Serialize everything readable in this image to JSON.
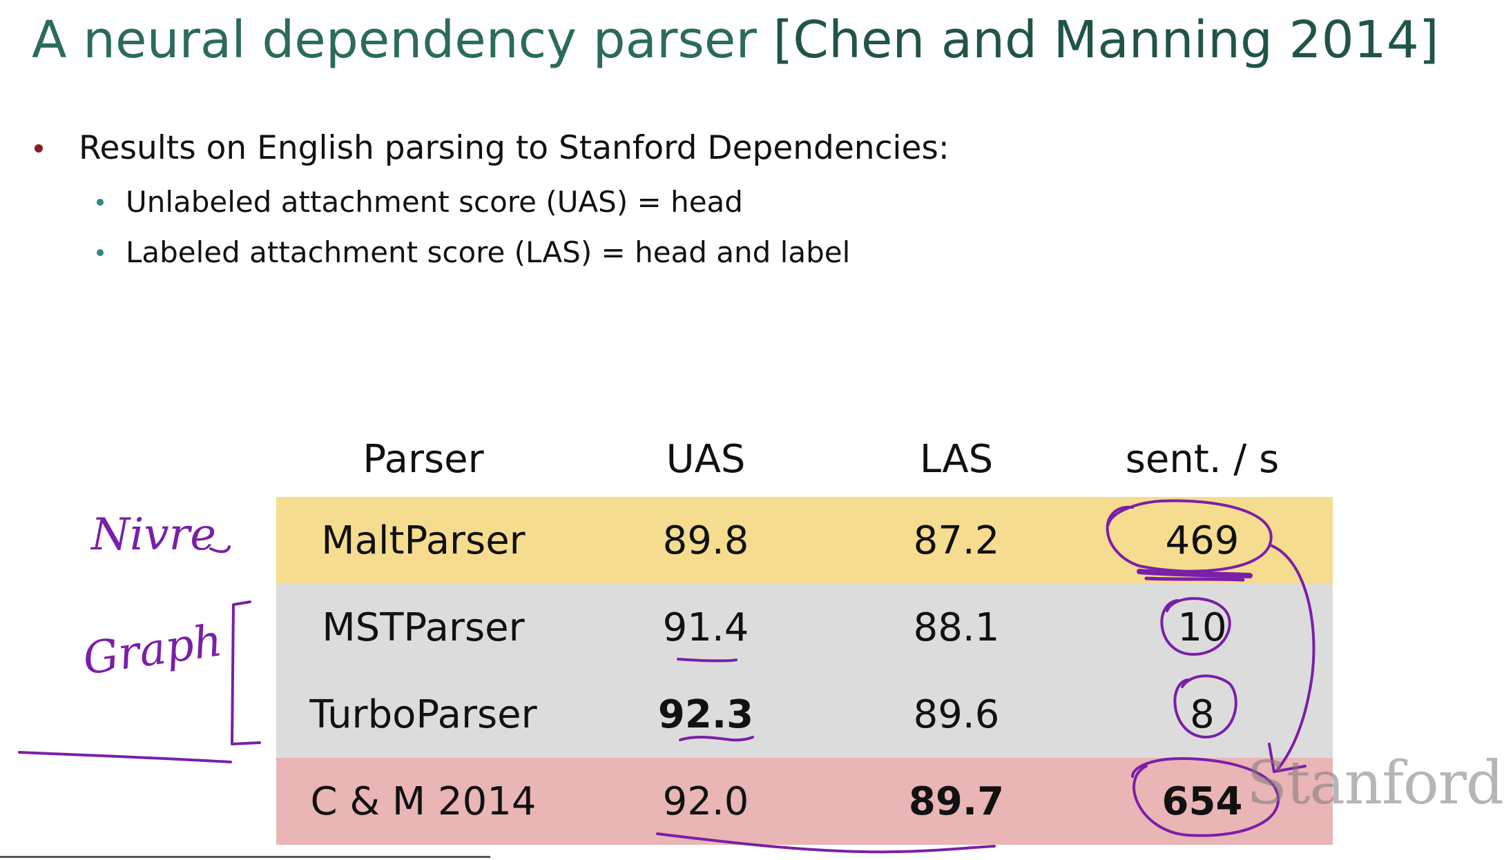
{
  "slide": {
    "title_main": "A neural dependency parser",
    "title_citation": "[Chen and Manning 2014]",
    "bullet_main": "Results on English parsing to Stanford Dependencies:",
    "sub_bullets": [
      "Unlabeled attachment score (UAS) = head",
      "Labeled attachment score (LAS) = head and label"
    ]
  },
  "table": {
    "headers": [
      "Parser",
      "UAS",
      "LAS",
      "sent. / s"
    ],
    "rows": [
      {
        "parser": "MaltParser",
        "uas": "89.8",
        "las": "87.2",
        "speed": "469"
      },
      {
        "parser": "MSTParser",
        "uas": "91.4",
        "las": "88.1",
        "speed": "10"
      },
      {
        "parser": "TurboParser",
        "uas": "92.3",
        "las": "89.6",
        "speed": "8"
      },
      {
        "parser": "C & M 2014",
        "uas": "92.0",
        "las": "89.7",
        "speed": "654"
      }
    ],
    "row_colors": {
      "transition": "#f6dc8f",
      "graph": "#dcdcdc",
      "chen_manning": "#eab5b5"
    }
  },
  "annotations": {
    "nivre": "Nivre",
    "graph": "Graph",
    "ink_color": "#7a1fa8"
  },
  "watermark": "Stanford"
}
